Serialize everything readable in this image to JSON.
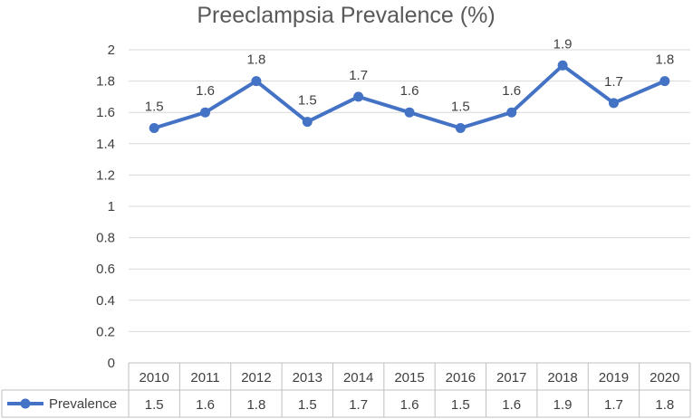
{
  "chart_data": {
    "type": "line",
    "title": "Preeclampsia Prevalence (%)",
    "xlabel": "",
    "ylabel": "",
    "ylim": [
      0,
      2
    ],
    "y_ticks": [
      "0",
      "0.2",
      "0.4",
      "0.6",
      "0.8",
      "1",
      "1.2",
      "1.4",
      "1.6",
      "1.8",
      "2"
    ],
    "categories": [
      "2010",
      "2011",
      "2012",
      "2013",
      "2014",
      "2015",
      "2016",
      "2017",
      "2018",
      "2019",
      "2020"
    ],
    "series": [
      {
        "name": "Prevalence",
        "color": "#4472c4",
        "values": [
          1.5,
          1.6,
          1.8,
          1.54,
          1.7,
          1.6,
          1.5,
          1.6,
          1.9,
          1.66,
          1.8
        ],
        "labels": [
          "1.5",
          "1.6",
          "1.8",
          "1.5",
          "1.7",
          "1.6",
          "1.5",
          "1.6",
          "1.9",
          "1.7",
          "1.8"
        ]
      }
    ],
    "grid": true,
    "data_table": true
  }
}
